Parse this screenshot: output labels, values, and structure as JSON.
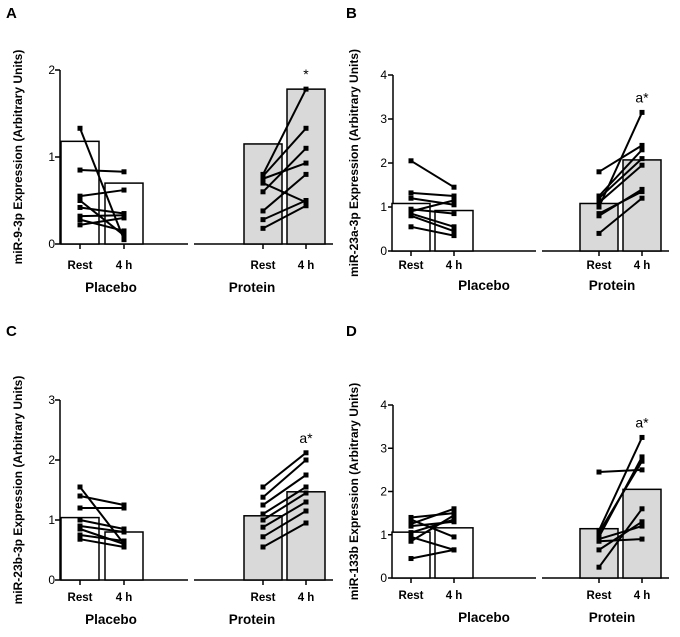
{
  "chart_data": [
    {
      "panel": "A",
      "type": "bar",
      "ylabel": "miR-9-3p Expression (Arbitrary Units)",
      "ylim": [
        0,
        2
      ],
      "yticks": [
        0,
        1,
        2
      ],
      "groups": [
        "Placebo",
        "Protein"
      ],
      "categories": [
        "Rest",
        "4 h",
        "Rest",
        "4 h"
      ],
      "bar_colors": [
        "#ffffff",
        "#ffffff",
        "#d9d9d9",
        "#d9d9d9"
      ],
      "values": [
        1.18,
        0.7,
        1.15,
        1.78
      ],
      "individual_pairs": {
        "placebo": [
          [
            1.33,
            0.05
          ],
          [
            0.85,
            0.83
          ],
          [
            0.55,
            0.62
          ],
          [
            0.5,
            0.1
          ],
          [
            0.42,
            0.35
          ],
          [
            0.32,
            0.33
          ],
          [
            0.28,
            0.15
          ],
          [
            0.22,
            0.3
          ]
        ],
        "protein": [
          [
            0.8,
            1.78
          ],
          [
            0.78,
            1.33
          ],
          [
            0.6,
            1.1
          ],
          [
            0.75,
            0.93
          ],
          [
            0.38,
            0.8
          ],
          [
            0.28,
            0.5
          ],
          [
            0.18,
            0.44
          ],
          [
            0.7,
            0.48
          ]
        ]
      },
      "annotations": [
        {
          "category_index": 3,
          "text": "*"
        }
      ]
    },
    {
      "panel": "B",
      "type": "bar",
      "ylabel": "miR-23a-3p Expression (Arbitrary Units)",
      "ylim": [
        0,
        4
      ],
      "yticks": [
        0,
        1,
        2,
        3,
        4
      ],
      "groups": [
        "Placebo",
        "Protein"
      ],
      "categories": [
        "Rest",
        "4 h",
        "Rest",
        "4 h"
      ],
      "bar_colors": [
        "#ffffff",
        "#ffffff",
        "#d9d9d9",
        "#d9d9d9"
      ],
      "values": [
        1.08,
        0.92,
        1.08,
        2.07
      ],
      "individual_pairs": {
        "placebo": [
          [
            2.05,
            1.45
          ],
          [
            1.32,
            1.25
          ],
          [
            1.2,
            1.05
          ],
          [
            0.95,
            0.85
          ],
          [
            0.9,
            1.15
          ],
          [
            0.85,
            0.55
          ],
          [
            0.8,
            0.45
          ],
          [
            0.55,
            0.35
          ]
        ],
        "protein": [
          [
            1.8,
            2.4
          ],
          [
            1.25,
            2.3
          ],
          [
            1.2,
            2.1
          ],
          [
            1.1,
            1.95
          ],
          [
            1.0,
            3.15
          ],
          [
            0.85,
            1.35
          ],
          [
            0.8,
            1.4
          ],
          [
            0.4,
            1.2
          ]
        ]
      },
      "annotations": [
        {
          "category_index": 3,
          "text": "a*"
        }
      ]
    },
    {
      "panel": "C",
      "type": "bar",
      "ylabel": "miR-23b-3p Expression (Arbitrary Units)",
      "ylim": [
        0,
        3
      ],
      "yticks": [
        0,
        1,
        2,
        3
      ],
      "groups": [
        "Placebo",
        "Protein"
      ],
      "categories": [
        "Rest",
        "4 h",
        "Rest",
        "4 h"
      ],
      "bar_colors": [
        "#ffffff",
        "#ffffff",
        "#d9d9d9",
        "#d9d9d9"
      ],
      "values": [
        1.04,
        0.8,
        1.07,
        1.47
      ],
      "individual_pairs": {
        "placebo": [
          [
            1.55,
            0.6
          ],
          [
            1.4,
            1.25
          ],
          [
            1.2,
            1.2
          ],
          [
            1.0,
            0.85
          ],
          [
            0.9,
            0.8
          ],
          [
            0.85,
            0.6
          ],
          [
            0.75,
            0.65
          ],
          [
            0.68,
            0.55
          ]
        ],
        "protein": [
          [
            1.55,
            2.12
          ],
          [
            1.38,
            2.0
          ],
          [
            1.25,
            1.75
          ],
          [
            1.1,
            1.55
          ],
          [
            1.0,
            1.45
          ],
          [
            0.88,
            1.3
          ],
          [
            0.72,
            1.15
          ],
          [
            0.55,
            0.95
          ]
        ]
      },
      "annotations": [
        {
          "category_index": 3,
          "text": "a*"
        }
      ]
    },
    {
      "panel": "D",
      "type": "bar",
      "ylabel": "miR-133b Expression (Arbitrary Units)",
      "ylim": [
        0,
        4
      ],
      "yticks": [
        0,
        1,
        2,
        3,
        4
      ],
      "groups": [
        "Placebo",
        "Protein"
      ],
      "categories": [
        "Rest",
        "4 h",
        "Rest",
        "4 h"
      ],
      "bar_colors": [
        "#ffffff",
        "#ffffff",
        "#d9d9d9",
        "#d9d9d9"
      ],
      "values": [
        1.06,
        1.16,
        1.14,
        2.05
      ],
      "individual_pairs": {
        "placebo": [
          [
            1.4,
            1.5
          ],
          [
            1.35,
            0.95
          ],
          [
            1.25,
            1.6
          ],
          [
            1.2,
            1.3
          ],
          [
            1.05,
            1.35
          ],
          [
            0.95,
            0.65
          ],
          [
            0.85,
            1.45
          ],
          [
            0.45,
            0.65
          ]
        ],
        "protein": [
          [
            2.45,
            2.5
          ],
          [
            1.1,
            3.25
          ],
          [
            1.05,
            2.7
          ],
          [
            0.95,
            2.8
          ],
          [
            0.9,
            1.2
          ],
          [
            0.85,
            0.9
          ],
          [
            0.65,
            1.3
          ],
          [
            0.25,
            1.6
          ]
        ]
      },
      "annotations": [
        {
          "category_index": 3,
          "text": "a*"
        }
      ]
    }
  ]
}
